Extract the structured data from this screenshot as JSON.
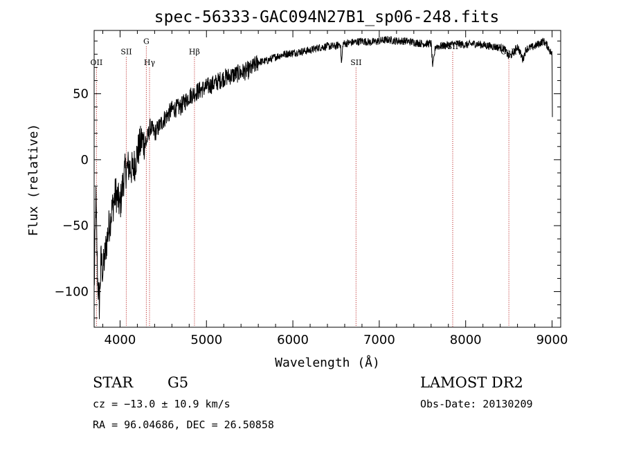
{
  "chart_data": {
    "type": "line",
    "title": "spec-56333-GAC094N27B1_sp06-248.fits",
    "xlabel": "Wavelength (Å)",
    "ylabel": "Flux (relative)",
    "xlim": [
      3700,
      9100
    ],
    "ylim": [
      -127,
      98
    ],
    "xticks": [
      4000,
      5000,
      6000,
      7000,
      8000,
      9000
    ],
    "yticks": [
      -100,
      -50,
      0,
      50
    ],
    "xtick_labels": [
      "4000",
      "5000",
      "6000",
      "7000",
      "8000",
      "9000"
    ],
    "ytick_labels": [
      "−100",
      "−50",
      "0",
      "50"
    ],
    "grid": false,
    "series": [
      {
        "x": [
          3700,
          3720,
          3740,
          3760,
          3780,
          3800,
          3830,
          3860,
          3900,
          3950,
          4000,
          4050,
          4100,
          4150,
          4200,
          4250,
          4300,
          4350,
          4400,
          4500,
          4600,
          4700,
          4800,
          4900,
          5000,
          5100,
          5200,
          5300,
          5400,
          5500,
          5600,
          5700,
          5800,
          5900,
          6000,
          6100,
          6200,
          6300,
          6400,
          6500,
          6550,
          6563,
          6580,
          6600,
          6700,
          6800,
          6900,
          7000,
          7100,
          7200,
          7300,
          7400,
          7500,
          7600,
          7620,
          7650,
          7700,
          7800,
          7900,
          8000,
          8100,
          8200,
          8300,
          8400,
          8450,
          8498,
          8542,
          8600,
          8662,
          8700,
          8800,
          8850,
          8900,
          8950,
          8980,
          9000,
          9005
        ],
        "values": [
          -100,
          -28,
          -90,
          -110,
          -75,
          -85,
          -70,
          -55,
          -40,
          -25,
          -35,
          -10,
          -5,
          -8,
          5,
          15,
          12,
          25,
          20,
          30,
          38,
          40,
          48,
          52,
          55,
          58,
          62,
          64,
          66,
          68,
          74,
          75,
          78,
          80,
          81,
          82,
          83,
          85,
          86,
          86,
          88,
          72,
          88,
          88,
          89,
          90,
          89,
          90,
          91,
          90,
          90,
          89,
          88,
          88,
          70,
          86,
          86,
          87,
          88,
          87,
          88,
          87,
          86,
          85,
          84,
          78,
          80,
          86,
          76,
          84,
          86,
          88,
          90,
          86,
          82,
          80,
          20
        ]
      }
    ],
    "spectral_lines": [
      {
        "label": "OII",
        "wavelength": 3727,
        "label_y": 74
      },
      {
        "label": "SII",
        "wavelength": 4072,
        "label_y": 82
      },
      {
        "label": "G",
        "wavelength": 4304,
        "label_y": 90
      },
      {
        "label": "Hγ",
        "wavelength": 4341,
        "label_y": 74
      },
      {
        "label": "Hβ",
        "wavelength": 4861,
        "label_y": 82
      },
      {
        "label": "SII",
        "wavelength": 6731,
        "label_y": 74
      },
      {
        "label": "SII",
        "wavelength": 7850,
        "label_y": 86
      },
      {
        "label": "CaII",
        "wavelength": 8500,
        "label_y": 82
      }
    ]
  },
  "info": {
    "class": "STAR",
    "subclass": "G5",
    "survey": "LAMOST DR2",
    "cz": "cz = −13.0 ± 10.9 km/s",
    "obsdate": "Obs-Date: 20130209",
    "radec": "RA =  96.04686, DEC =  26.50858"
  }
}
